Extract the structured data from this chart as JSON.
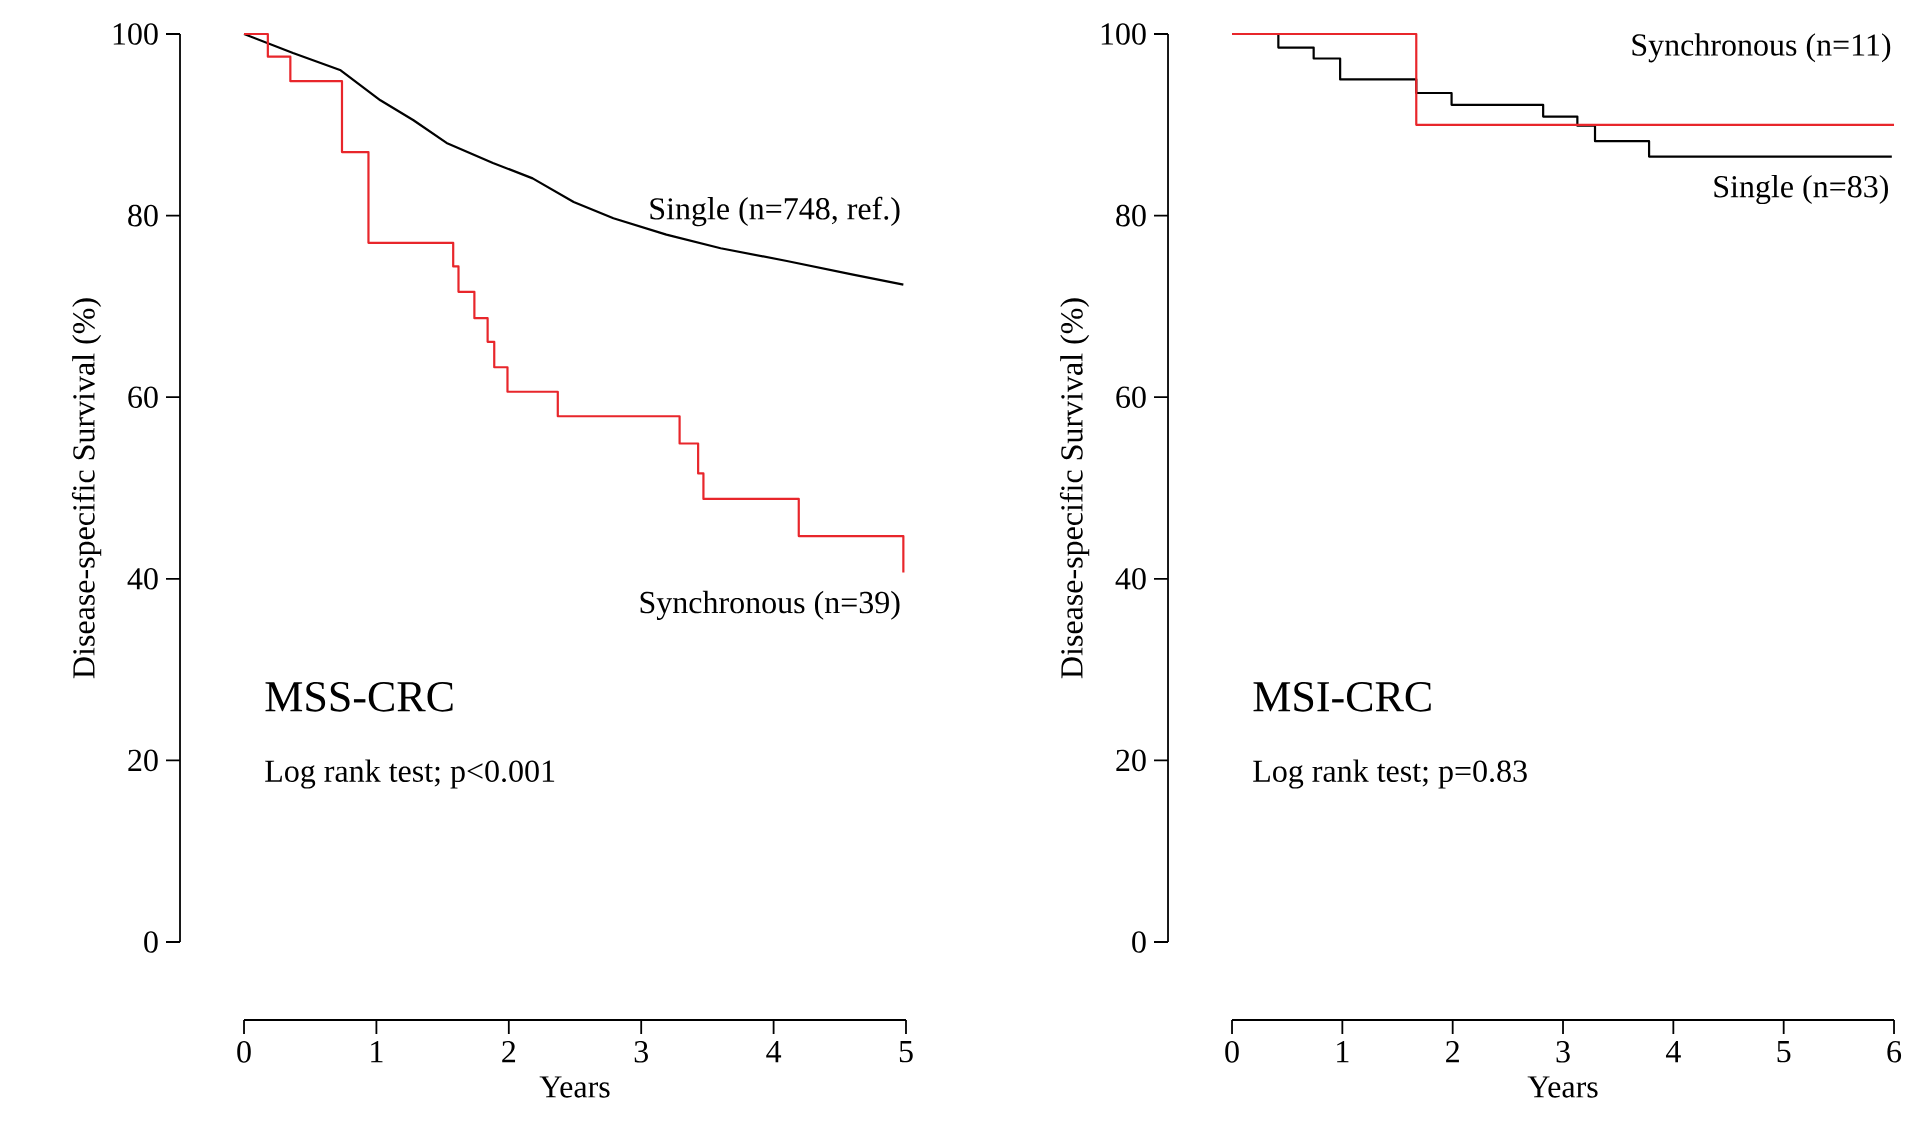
{
  "chart_data": [
    {
      "type": "step",
      "xlabel": "Years",
      "ylabel": "Disease-specific Survival (%)",
      "xlim": [
        0,
        5
      ],
      "ylim": [
        0,
        100
      ],
      "xticks": [
        0,
        1,
        2,
        3,
        4,
        5
      ],
      "yticks": [
        0,
        20,
        40,
        60,
        80,
        100
      ],
      "series": [
        {
          "name": "Single  (n=748, ref.)",
          "color": "#000000",
          "type": "line",
          "x": [
            0,
            0.37,
            0.73,
            1.03,
            1.28,
            1.53,
            1.88,
            2.18,
            2.49,
            2.79,
            3.19,
            3.6,
            4.1,
            4.6,
            4.98
          ],
          "values": [
            100,
            97.9,
            96.0,
            92.7,
            90.5,
            88.0,
            85.8,
            84.1,
            81.5,
            79.7,
            77.9,
            76.4,
            75.0,
            73.5,
            72.4
          ]
        },
        {
          "name": "Synchronous (n=39)",
          "color": "#e8262b",
          "x": [
            0,
            0.18,
            0.35,
            0.74,
            0.94,
            1.58,
            1.62,
            1.74,
            1.84,
            1.89,
            1.99,
            2.37,
            3.29,
            3.43,
            3.47,
            4.19,
            4.98
          ],
          "values": [
            100,
            97.5,
            94.8,
            87.0,
            77.0,
            74.4,
            71.6,
            68.7,
            66.1,
            63.3,
            60.6,
            57.9,
            54.9,
            51.6,
            48.8,
            44.7,
            40.7
          ]
        }
      ],
      "annotations": [
        "MSS-CRC",
        "Log rank test; p<0.001"
      ]
    },
    {
      "type": "step",
      "xlabel": "Years",
      "ylabel": "Disease-specific Survival (%)",
      "xlim": [
        0,
        6
      ],
      "ylim": [
        0,
        100
      ],
      "xticks": [
        0,
        1,
        2,
        3,
        4,
        5,
        6
      ],
      "yticks": [
        0,
        20,
        40,
        60,
        80,
        100
      ],
      "series": [
        {
          "name": "Single (n=83)",
          "color": "#000000",
          "x": [
            0,
            0.42,
            0.74,
            0.98,
            1.67,
            1.99,
            2.82,
            3.13,
            3.29,
            3.78,
            5.98
          ],
          "values": [
            100,
            98.5,
            97.3,
            95.0,
            93.5,
            92.2,
            90.9,
            89.9,
            88.2,
            86.5,
            86.5
          ]
        },
        {
          "name": "Synchronous (n=11)",
          "color": "#e8262b",
          "x": [
            0,
            1.67,
            6
          ],
          "values": [
            100,
            90,
            90
          ]
        }
      ],
      "annotations": [
        "MSI-CRC",
        "Log rank test; p=0.83"
      ]
    }
  ]
}
